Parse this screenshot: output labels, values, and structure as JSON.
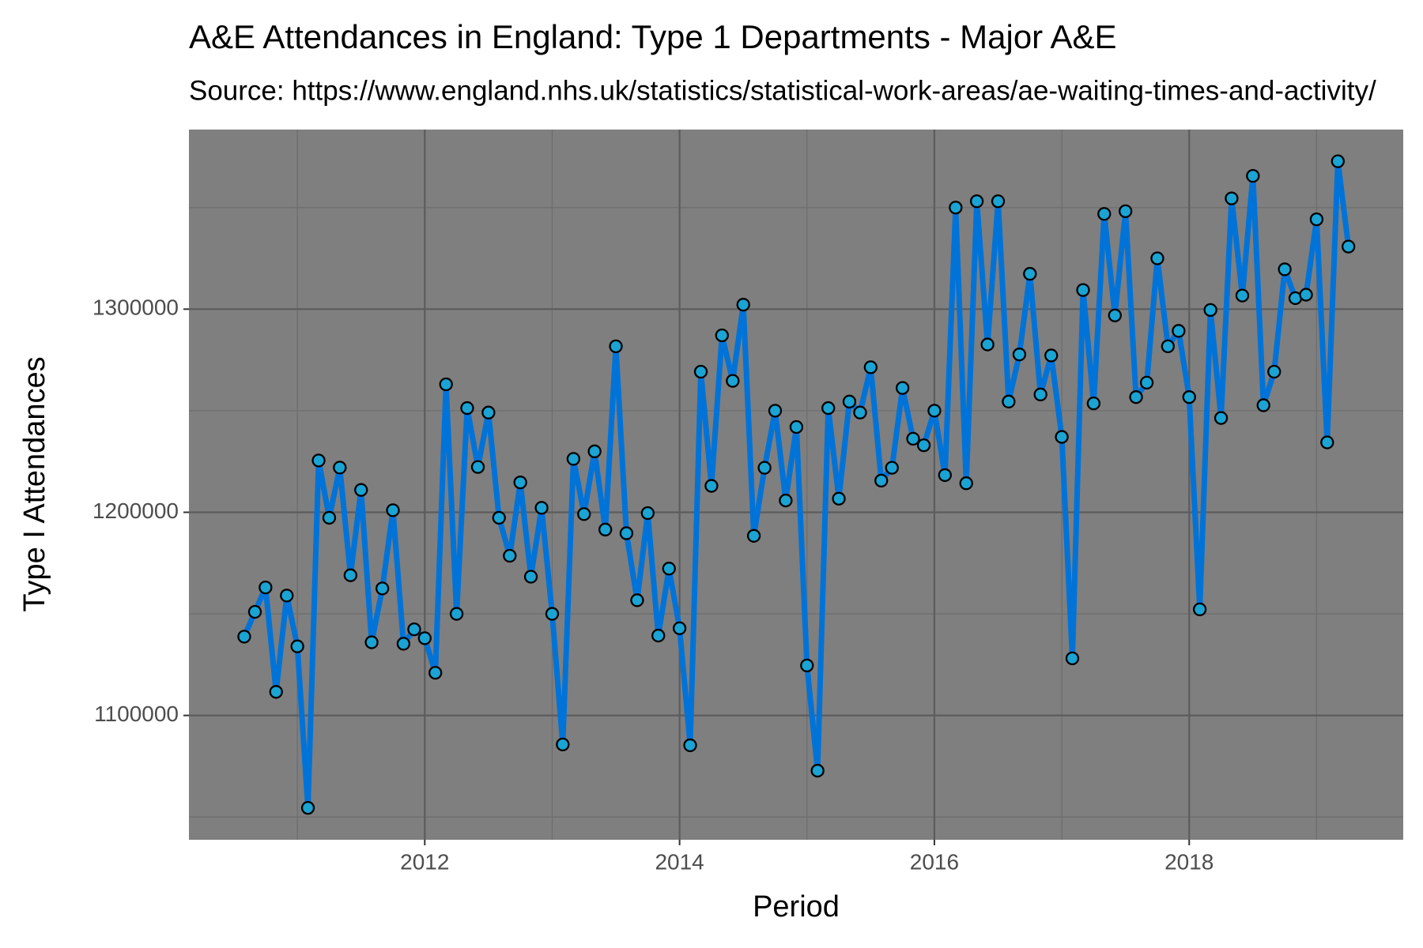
{
  "chart_data": {
    "type": "line",
    "title": "A&E Attendances in England: Type 1 Departments - Major A&E",
    "subtitle": "Source: https://www.england.nhs.uk/statistics/statistical-work-areas/ae-waiting-times-and-activity/",
    "x_label": "Period",
    "y_label": "Type I Attendances",
    "x": [
      2010.583,
      2010.667,
      2010.75,
      2010.833,
      2010.917,
      2011.0,
      2011.083,
      2011.167,
      2011.25,
      2011.333,
      2011.417,
      2011.5,
      2011.583,
      2011.667,
      2011.75,
      2011.833,
      2011.917,
      2012.0,
      2012.083,
      2012.167,
      2012.25,
      2012.333,
      2012.417,
      2012.5,
      2012.583,
      2012.667,
      2012.75,
      2012.833,
      2012.917,
      2013.0,
      2013.083,
      2013.167,
      2013.25,
      2013.333,
      2013.417,
      2013.5,
      2013.583,
      2013.667,
      2013.75,
      2013.833,
      2013.917,
      2014.0,
      2014.083,
      2014.167,
      2014.25,
      2014.333,
      2014.417,
      2014.5,
      2014.583,
      2014.667,
      2014.75,
      2014.833,
      2014.917,
      2015.0,
      2015.083,
      2015.167,
      2015.25,
      2015.333,
      2015.417,
      2015.5,
      2015.583,
      2015.667,
      2015.75,
      2015.833,
      2015.917,
      2016.0,
      2016.083,
      2016.167,
      2016.25,
      2016.333,
      2016.417,
      2016.5,
      2016.583,
      2016.667,
      2016.75,
      2016.833,
      2016.917,
      2017.0,
      2017.083,
      2017.167,
      2017.25,
      2017.333,
      2017.417,
      2017.5,
      2017.583,
      2017.667,
      2017.75,
      2017.833,
      2017.917,
      2018.0,
      2018.083,
      2018.167,
      2018.25,
      2018.333,
      2018.417,
      2018.5,
      2018.583,
      2018.667,
      2018.75,
      2018.833,
      2018.917,
      2019.0,
      2019.083,
      2019.167,
      2019.25
    ],
    "series": [
      {
        "name": "Type I Attendances",
        "color": "#0073d9",
        "marker_color": "#1aa3d3",
        "values": [
          1138800,
          1151000,
          1163000,
          1111600,
          1159000,
          1134000,
          1054500,
          1225500,
          1197300,
          1222000,
          1169000,
          1211000,
          1136000,
          1162500,
          1201000,
          1135300,
          1142400,
          1138000,
          1121000,
          1263000,
          1150000,
          1251300,
          1222300,
          1249100,
          1197300,
          1178600,
          1214700,
          1168300,
          1202200,
          1150000,
          1085700,
          1226300,
          1199100,
          1230000,
          1191500,
          1281700,
          1189700,
          1156700,
          1199600,
          1139300,
          1172300,
          1142900,
          1085300,
          1269200,
          1213000,
          1287100,
          1264700,
          1302200,
          1188400,
          1221900,
          1250000,
          1205800,
          1242000,
          1124600,
          1072800,
          1251300,
          1206700,
          1254500,
          1249100,
          1271400,
          1215600,
          1221900,
          1261200,
          1236200,
          1233000,
          1250000,
          1218300,
          1350000,
          1214300,
          1353100,
          1282600,
          1353100,
          1254500,
          1277700,
          1317400,
          1258000,
          1277200,
          1237100,
          1128100,
          1309400,
          1253600,
          1346900,
          1296900,
          1348200,
          1256700,
          1263800,
          1325000,
          1281700,
          1289300,
          1256700,
          1152200,
          1299600,
          1246400,
          1354500,
          1306700,
          1365600,
          1252700,
          1269200,
          1319600,
          1305400,
          1307100,
          1344200,
          1234400,
          1372800,
          1330800
        ]
      }
    ],
    "xlim": [
      2010.149,
      2019.68
    ],
    "xticks": [
      2012,
      2014,
      2016,
      2018
    ],
    "x_minor_ticks": [
      2011,
      2013,
      2015,
      2017,
      2019
    ],
    "ylim": [
      1038800,
      1388400
    ],
    "yticks": [
      1100000,
      1200000,
      1300000
    ],
    "y_minor_ticks": [
      1050000,
      1150000,
      1250000,
      1350000
    ],
    "grid": true,
    "panel_color": "#7f7f7f"
  }
}
